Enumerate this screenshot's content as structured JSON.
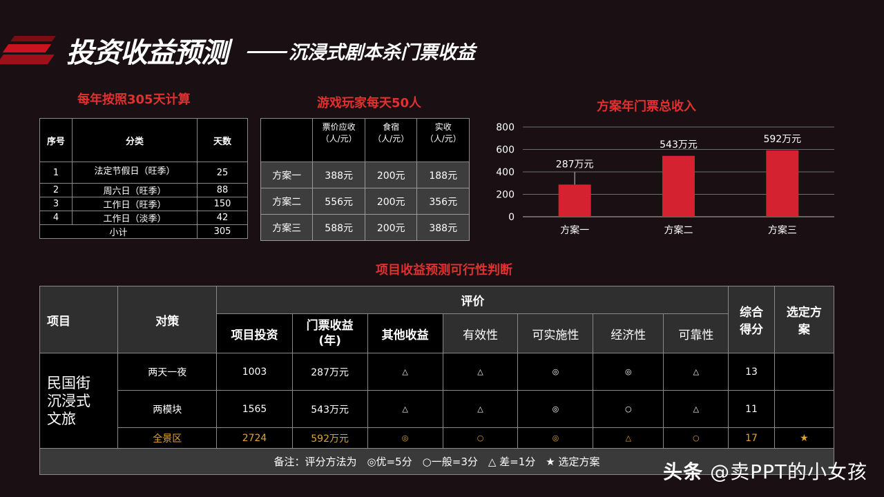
{
  "title": {
    "main": "投资收益预测",
    "sub": "沉浸式剧本杀门票收益"
  },
  "sections": {
    "days_title": "每年按照305天计算",
    "players_title": "游戏玩家每天50人",
    "chart_title": "方案年门票总收入",
    "feasibility_title": "项目收益预测可行性判断"
  },
  "days_table": {
    "headers": [
      "序号",
      "分类",
      "天数"
    ],
    "rows": [
      [
        "1",
        "法定节假日（旺季）",
        "25"
      ],
      [
        "2",
        "周六日（旺季）",
        "88"
      ],
      [
        "3",
        "工作日（旺季）",
        "150"
      ],
      [
        "4",
        "工作日（淡季）",
        "42"
      ]
    ],
    "total_label": "小计",
    "total_value": "305"
  },
  "price_table": {
    "headers": [
      "",
      "票价应收\n（人/元）",
      "食宿\n（人/元）",
      "实收\n（人/元）"
    ],
    "rows": [
      [
        "方案一",
        "388元",
        "200元",
        "188元"
      ],
      [
        "方案二",
        "556元",
        "200元",
        "356元"
      ],
      [
        "方案三",
        "588元",
        "200元",
        "388元"
      ]
    ]
  },
  "chart_data": {
    "type": "bar",
    "title": "方案年门票总收入",
    "categories": [
      "方案一",
      "方案二",
      "方案三"
    ],
    "values": [
      287,
      543,
      592
    ],
    "data_labels": [
      "287万元",
      "543万元",
      "592万元"
    ],
    "ylim": [
      0,
      800
    ],
    "yticks": [
      "0",
      "200",
      "400",
      "600",
      "800"
    ],
    "grid": true,
    "bar_color": "#d42230"
  },
  "feasibility_table": {
    "project_header": "项目",
    "strategy_header": "对策",
    "eval_header": "评价",
    "score_header": "综合\n得分",
    "selected_header": "选定方\n案",
    "sub_headers": [
      "项目投资",
      "门票收益\n(年)",
      "其他收益",
      "有效性",
      "可实施性",
      "经济性",
      "可靠性"
    ],
    "project_name": "民国街\n沉浸式\n文旅",
    "rows": [
      {
        "strategy": "两天一夜",
        "investment": "1003",
        "revenue": "287万元",
        "other": "△",
        "effective": "△",
        "feasible": "◎",
        "economic": "◎",
        "reliable": "△",
        "score": "13",
        "selected": ""
      },
      {
        "strategy": "两模块",
        "investment": "1565",
        "revenue": "543万元",
        "other": "△",
        "effective": "△",
        "feasible": "◎",
        "economic": "○",
        "reliable": "△",
        "score": "11",
        "selected": ""
      },
      {
        "strategy": "全景区",
        "investment": "2724",
        "revenue": "592万元",
        "other": "◎",
        "effective": "○",
        "feasible": "◎",
        "economic": "△",
        "reliable": "○",
        "score": "17",
        "selected": "★"
      }
    ],
    "note": "备注：评分方法为　◎优=5分　○一般=3分　△ 差=1分　★ 选定方案"
  },
  "watermark": {
    "brand": "头条",
    "handle": "@卖PPT的小女孩"
  },
  "colors": {
    "accent": "#e03030",
    "highlight": "#e1a32b",
    "background": "#1a1014"
  }
}
